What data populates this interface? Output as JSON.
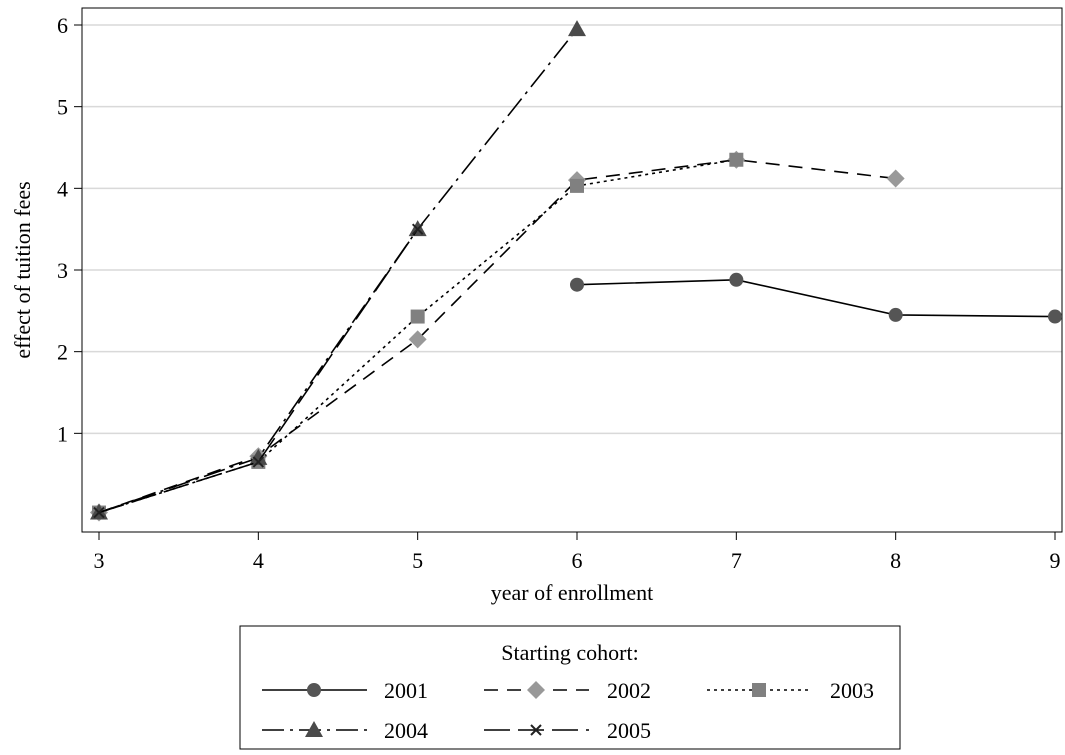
{
  "chart_data": {
    "type": "line",
    "xlabel": "year of enrollment",
    "ylabel": "effect of tuition fees",
    "xlim": [
      3,
      9
    ],
    "ylim": [
      0,
      6
    ],
    "xticks": [
      "3",
      "4",
      "5",
      "6",
      "7",
      "8",
      "9"
    ],
    "yticks": [
      "1",
      "2",
      "3",
      "4",
      "5",
      "6"
    ],
    "grid": "horizontal",
    "legend": {
      "title": "Starting cohort:",
      "placement": "bottom"
    },
    "series": [
      {
        "name": "2001",
        "marker": "circle",
        "dash": "solid",
        "color": "#555555",
        "x": [
          6,
          7,
          8,
          9
        ],
        "y": [
          2.82,
          2.88,
          2.45,
          2.43
        ]
      },
      {
        "name": "2002",
        "marker": "diamond",
        "dash": "dashed",
        "color": "#999999",
        "x": [
          3,
          4,
          5,
          6,
          7,
          8
        ],
        "y": [
          0.03,
          0.72,
          2.15,
          4.1,
          4.35,
          4.12
        ]
      },
      {
        "name": "2003",
        "marker": "square",
        "dash": "dotted",
        "color": "#808080",
        "x": [
          3,
          4,
          5,
          6,
          7
        ],
        "y": [
          0.03,
          0.65,
          2.43,
          4.03,
          4.35
        ]
      },
      {
        "name": "2004",
        "marker": "triangle",
        "dash": "dashdot",
        "color": "#4a4a4a",
        "x": [
          3,
          4,
          5,
          6
        ],
        "y": [
          0.03,
          0.7,
          3.5,
          5.95
        ]
      },
      {
        "name": "2005",
        "marker": "x",
        "dash": "longdash",
        "color": "#222222",
        "x": [
          3,
          4,
          5
        ],
        "y": [
          0.03,
          0.65,
          3.5
        ]
      }
    ]
  }
}
